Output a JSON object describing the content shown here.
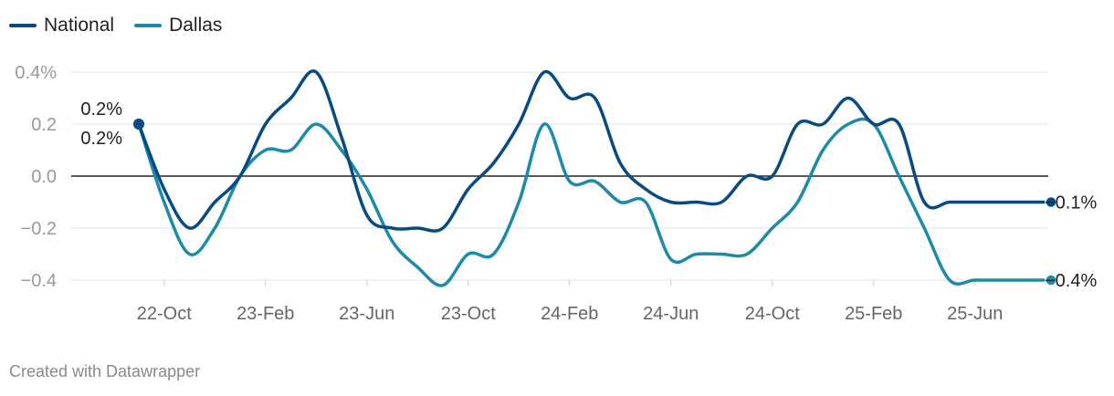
{
  "chart_data": {
    "type": "line",
    "x": [
      "22-Sep",
      "22-Oct",
      "22-Nov",
      "22-Dec",
      "23-Jan",
      "23-Feb",
      "23-Mar",
      "23-Apr",
      "23-May",
      "23-Jun",
      "23-Jul",
      "23-Aug",
      "23-Sep",
      "23-Oct",
      "23-Nov",
      "23-Dec",
      "24-Jan",
      "24-Feb",
      "24-Mar",
      "24-Apr",
      "24-May",
      "24-Jun",
      "24-Jul",
      "24-Aug",
      "24-Sep",
      "24-Oct",
      "24-Nov",
      "24-Dec",
      "25-Jan",
      "25-Feb",
      "25-Mar",
      "25-Apr",
      "25-May",
      "25-Jun",
      "25-Jul",
      "25-Aug",
      "25-Sep"
    ],
    "x_ticks": [
      "22-Oct",
      "23-Feb",
      "23-Jun",
      "23-Oct",
      "24-Feb",
      "24-Jun",
      "24-Oct",
      "25-Feb",
      "25-Jun"
    ],
    "series": [
      {
        "name": "National",
        "color": "#084b83",
        "values": [
          0.2,
          -0.05,
          -0.2,
          -0.1,
          0.0,
          0.2,
          0.3,
          0.4,
          0.15,
          -0.15,
          -0.2,
          -0.2,
          -0.2,
          -0.05,
          0.05,
          0.2,
          0.4,
          0.3,
          0.3,
          0.05,
          -0.05,
          -0.1,
          -0.1,
          -0.1,
          0.0,
          0.0,
          0.2,
          0.2,
          0.3,
          0.2,
          0.2,
          -0.1,
          -0.1,
          -0.1,
          -0.1,
          -0.1,
          -0.1
        ]
      },
      {
        "name": "Dallas",
        "color": "#1d8aa8",
        "values": [
          0.2,
          -0.1,
          -0.3,
          -0.2,
          0.0,
          0.1,
          0.1,
          0.2,
          0.1,
          -0.05,
          -0.25,
          -0.35,
          -0.42,
          -0.3,
          -0.3,
          -0.1,
          0.2,
          -0.02,
          -0.02,
          -0.1,
          -0.1,
          -0.32,
          -0.3,
          -0.3,
          -0.3,
          -0.2,
          -0.1,
          0.1,
          0.2,
          0.2,
          0.0,
          -0.2,
          -0.4,
          -0.4,
          -0.4,
          -0.4,
          -0.4
        ]
      }
    ],
    "y_ticks": [
      "0.4%",
      "0.2",
      "0.0",
      "−0.2",
      "−0.4"
    ],
    "y_tick_values": [
      0.4,
      0.2,
      0.0,
      -0.2,
      -0.4
    ],
    "ylim": [
      -0.4,
      0.4
    ],
    "start_labels": {
      "National": "0.2%",
      "Dallas": "0.2%"
    },
    "end_labels": {
      "National": "−0.1%",
      "Dallas": "−0.4%"
    },
    "legend": [
      "National",
      "Dallas"
    ],
    "legend_position": "top-left",
    "grid": true,
    "title": "",
    "xlabel": "",
    "ylabel": ""
  },
  "footer": {
    "credit": "Created with Datawrapper"
  }
}
